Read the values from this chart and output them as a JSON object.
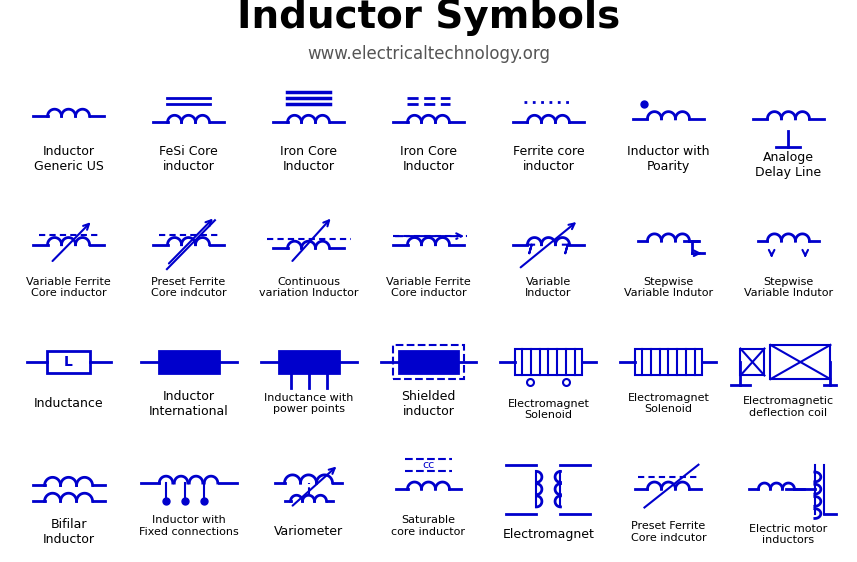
{
  "title": "Inductor Symbols",
  "subtitle": "www.electricaltechnology.org",
  "title_fontsize": 28,
  "subtitle_fontsize": 12,
  "label_fontsize": 9,
  "symbol_color": "#0000CC",
  "bg_color": "#ffffff",
  "cell_bg_light": "#f0f0f0",
  "cell_bg_dark": "#e0e0e0",
  "grid_cols": 7,
  "grid_rows": 4,
  "labels": [
    [
      "Inductor\nGeneric US",
      "FeSi Core\ninductor",
      "Iron Core\nInductor",
      "Iron Core\nInductor",
      "Ferrite core\ninductor",
      "Inductor with\nPoarity",
      "Analoge\nDelay Line"
    ],
    [
      "Variable Ferrite\nCore inductor",
      "Preset Ferrite\nCore indcutor",
      "Continuous\nvariation Inductor",
      "Variable Ferrite\nCore inductor",
      "Variable\nInductor",
      "Stepwise\nVariable Indutor",
      "Stepwise\nVariable Indutor"
    ],
    [
      "Inductance",
      "Inductor\nInternational",
      "Inductance with\npower points",
      "Shielded\ninductor",
      "Electromagnet\nSolenoid",
      "Electromagnet\nSolenoid",
      "Electromagnetic\ndeflection coil"
    ],
    [
      "Bifilar\nInductor",
      "Inductor with\nFixed connections",
      "Variometer",
      "Saturable\ncore inductor",
      "Electromagnet",
      "Preset Ferrite\nCore indcutor",
      "Electric motor\ninductors"
    ]
  ]
}
